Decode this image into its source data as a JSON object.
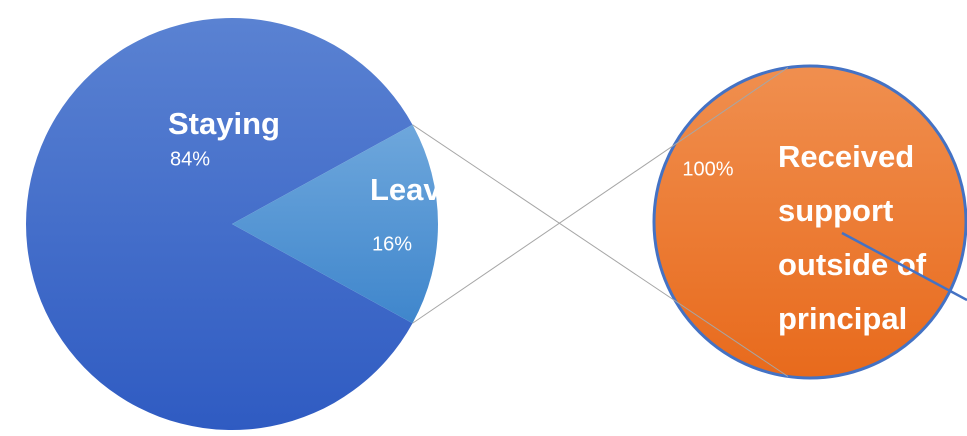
{
  "chart_data": [
    {
      "type": "pie",
      "categories": [
        "Staying",
        "Leaving"
      ],
      "values": [
        84,
        16
      ],
      "value_labels": [
        "84%",
        "16%"
      ],
      "colors": [
        "#3a66c8",
        "#5b9bd5"
      ]
    },
    {
      "type": "pie",
      "categories": [
        "Received support outside of principal"
      ],
      "values": [
        100
      ],
      "value_labels": [
        "100%"
      ],
      "colors": [
        "#ed7d31"
      ]
    }
  ]
}
